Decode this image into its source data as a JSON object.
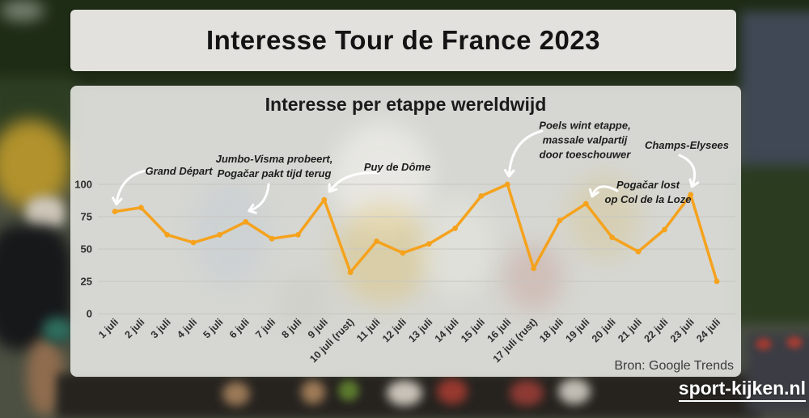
{
  "page": {
    "main_title": "Interesse Tour de France 2023",
    "source_label": "Bron: Google Trends",
    "watermark": "sport-kijken.nl"
  },
  "chart_data": {
    "type": "line",
    "title": "Interesse per etappe wereldwijd",
    "categories": [
      "1 juli",
      "2 juli",
      "3 juli",
      "4 juli",
      "5 juli",
      "6 juli",
      "7 juli",
      "8 juli",
      "9 juli",
      "10 juli (rust)",
      "11 juli",
      "12 juli",
      "13 juli",
      "14 juli",
      "15 juli",
      "16 juli",
      "17 juli (rust)",
      "18 juli",
      "19 juli",
      "20 juli",
      "21 juli",
      "22 juli",
      "23 juli",
      "24 juli"
    ],
    "values": [
      79,
      82,
      61,
      55,
      61,
      71,
      58,
      61,
      88,
      32,
      56,
      47,
      54,
      66,
      91,
      100,
      35,
      72,
      85,
      59,
      48,
      65,
      92,
      25
    ],
    "ylim": [
      0,
      100
    ],
    "yticks": [
      0,
      25,
      50,
      75,
      100
    ],
    "grid": true,
    "line_color": "#F5A21D",
    "arrow_color": "#ffffff",
    "legend": "none",
    "annotations": [
      {
        "lines": [
          "Grand Départ"
        ],
        "target_index": 0
      },
      {
        "lines": [
          "Jumbo-Visma probeert,",
          "Pogačar pakt tijd terug"
        ],
        "target_index": 5
      },
      {
        "lines": [
          "Puy de Dôme"
        ],
        "target_index": 8
      },
      {
        "lines": [
          "Poels wint etappe,",
          "massale valpartij",
          "door toeschouwer"
        ],
        "target_index": 15
      },
      {
        "lines": [
          "Pogačar lost",
          "op Col de la Loze"
        ],
        "target_index": 18
      },
      {
        "lines": [
          "Champs-Elysees"
        ],
        "target_index": 22
      }
    ]
  }
}
